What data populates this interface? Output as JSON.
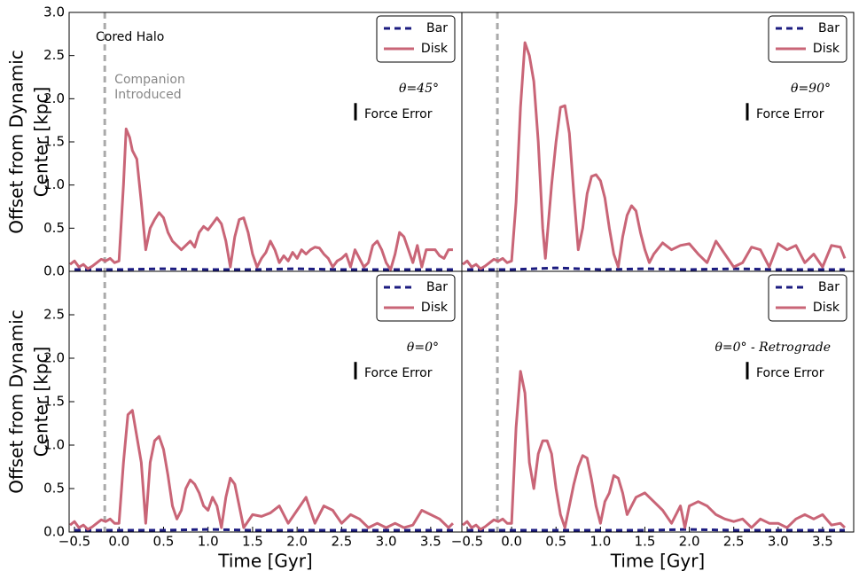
{
  "chart_data": [
    {
      "type": "line",
      "xlim": [
        -0.56,
        3.85
      ],
      "ylim": [
        0,
        3
      ],
      "yticks": [
        {
          "value": 0,
          "label": "0.0"
        },
        {
          "value": 0.5,
          "label": "0.5"
        },
        {
          "value": 1,
          "label": "1.0"
        },
        {
          "value": 1.5,
          "label": "1.5"
        },
        {
          "value": 2,
          "label": "2.0"
        },
        {
          "value": 2.5,
          "label": "2.5"
        },
        {
          "value": 3,
          "label": "3.0"
        }
      ],
      "ylabel": [
        "Offset from Dynamic",
        "Center [kpc]"
      ],
      "annotation": "Cored Halo",
      "vline": -0.16,
      "vline_label": [
        "Companion",
        "Introduced"
      ],
      "label": "θ=45°",
      "force_error": 0.2,
      "force_error_label": "Force Error",
      "legend": "upper right",
      "series": [
        {
          "name": "Bar",
          "color": "#1c1c80",
          "dashed": true,
          "x": [
            -0.5,
            0,
            0.5,
            1,
            1.5,
            2,
            2.5,
            3,
            3.5,
            3.75
          ],
          "values": [
            0.02,
            0.02,
            0.03,
            0.02,
            0.02,
            0.03,
            0.02,
            0.02,
            0.02,
            0.02
          ]
        },
        {
          "name": "Disk",
          "color": "#c96577",
          "x": [
            -0.55,
            -0.5,
            -0.45,
            -0.4,
            -0.35,
            -0.3,
            -0.25,
            -0.2,
            -0.15,
            -0.1,
            -0.05,
            0,
            0.05,
            0.08,
            0.12,
            0.15,
            0.2,
            0.25,
            0.3,
            0.35,
            0.4,
            0.45,
            0.5,
            0.55,
            0.6,
            0.65,
            0.7,
            0.75,
            0.8,
            0.85,
            0.9,
            0.95,
            1,
            1.05,
            1.1,
            1.15,
            1.2,
            1.25,
            1.3,
            1.35,
            1.4,
            1.45,
            1.5,
            1.55,
            1.6,
            1.65,
            1.7,
            1.75,
            1.8,
            1.85,
            1.9,
            1.95,
            2,
            2.05,
            2.1,
            2.15,
            2.2,
            2.25,
            2.3,
            2.35,
            2.4,
            2.45,
            2.5,
            2.55,
            2.6,
            2.65,
            2.7,
            2.75,
            2.8,
            2.85,
            2.9,
            2.95,
            3,
            3.05,
            3.1,
            3.15,
            3.2,
            3.25,
            3.3,
            3.35,
            3.4,
            3.45,
            3.5,
            3.55,
            3.6,
            3.65,
            3.7,
            3.75
          ],
          "values": [
            0.08,
            0.12,
            0.05,
            0.08,
            0.03,
            0.06,
            0.1,
            0.14,
            0.12,
            0.15,
            0.1,
            0.12,
            1.0,
            1.65,
            1.55,
            1.4,
            1.3,
            0.8,
            0.25,
            0.5,
            0.6,
            0.68,
            0.62,
            0.45,
            0.35,
            0.3,
            0.25,
            0.3,
            0.35,
            0.28,
            0.45,
            0.52,
            0.48,
            0.55,
            0.62,
            0.55,
            0.35,
            0.05,
            0.4,
            0.6,
            0.62,
            0.45,
            0.2,
            0.05,
            0.15,
            0.22,
            0.35,
            0.25,
            0.1,
            0.18,
            0.12,
            0.22,
            0.15,
            0.25,
            0.2,
            0.25,
            0.28,
            0.27,
            0.2,
            0.15,
            0.05,
            0.12,
            0.15,
            0.2,
            0.05,
            0.25,
            0.15,
            0.05,
            0.1,
            0.3,
            0.35,
            0.25,
            0.1,
            0.02,
            0.2,
            0.45,
            0.4,
            0.25,
            0.1,
            0.3,
            0.05,
            0.25,
            0.25,
            0.25,
            0.18,
            0.15,
            0.25,
            0.25
          ]
        }
      ]
    },
    {
      "type": "line",
      "xlim": [
        -0.56,
        3.85
      ],
      "ylim": [
        0,
        3
      ],
      "vline": -0.16,
      "label": "θ=90°",
      "force_error": 0.2,
      "force_error_label": "Force Error",
      "legend": "upper right",
      "series": [
        {
          "name": "Bar",
          "color": "#1c1c80",
          "dashed": true,
          "x": [
            -0.5,
            0,
            0.5,
            1,
            1.5,
            2,
            2.5,
            3,
            3.5,
            3.75
          ],
          "values": [
            0.02,
            0.02,
            0.04,
            0.02,
            0.03,
            0.02,
            0.03,
            0.02,
            0.02,
            0.02
          ]
        },
        {
          "name": "Disk",
          "color": "#c96577",
          "x": [
            -0.55,
            -0.5,
            -0.45,
            -0.4,
            -0.35,
            -0.3,
            -0.25,
            -0.2,
            -0.15,
            -0.1,
            -0.05,
            0,
            0.05,
            0.1,
            0.15,
            0.2,
            0.25,
            0.3,
            0.35,
            0.38,
            0.45,
            0.5,
            0.55,
            0.6,
            0.65,
            0.7,
            0.75,
            0.8,
            0.85,
            0.9,
            0.95,
            1,
            1.05,
            1.1,
            1.15,
            1.2,
            1.25,
            1.3,
            1.35,
            1.4,
            1.45,
            1.5,
            1.55,
            1.6,
            1.7,
            1.8,
            1.9,
            2,
            2.1,
            2.2,
            2.3,
            2.4,
            2.5,
            2.6,
            2.7,
            2.8,
            2.9,
            3,
            3.1,
            3.2,
            3.3,
            3.4,
            3.5,
            3.6,
            3.7,
            3.75
          ],
          "values": [
            0.08,
            0.12,
            0.05,
            0.08,
            0.03,
            0.06,
            0.1,
            0.14,
            0.12,
            0.15,
            0.1,
            0.12,
            0.8,
            1.9,
            2.65,
            2.5,
            2.2,
            1.5,
            0.5,
            0.15,
            1.0,
            1.5,
            1.9,
            1.92,
            1.6,
            0.9,
            0.25,
            0.5,
            0.9,
            1.1,
            1.12,
            1.05,
            0.85,
            0.5,
            0.2,
            0.05,
            0.4,
            0.65,
            0.76,
            0.7,
            0.45,
            0.25,
            0.1,
            0.2,
            0.33,
            0.25,
            0.3,
            0.32,
            0.2,
            0.1,
            0.35,
            0.2,
            0.05,
            0.1,
            0.28,
            0.25,
            0.05,
            0.32,
            0.25,
            0.3,
            0.1,
            0.2,
            0.05,
            0.3,
            0.28,
            0.15
          ]
        }
      ]
    },
    {
      "type": "line",
      "xlim": [
        -0.56,
        3.85
      ],
      "ylim": [
        0,
        3
      ],
      "yticks": [
        {
          "value": 0,
          "label": "0.0"
        },
        {
          "value": 0.5,
          "label": "0.5"
        },
        {
          "value": 1,
          "label": "1.0"
        },
        {
          "value": 1.5,
          "label": "1.5"
        },
        {
          "value": 2,
          "label": "2.0"
        },
        {
          "value": 2.5,
          "label": "2.5"
        }
      ],
      "xticks": [
        {
          "value": -0.5,
          "label": "−0.5"
        },
        {
          "value": 0,
          "label": "0.0"
        },
        {
          "value": 0.5,
          "label": "0.5"
        },
        {
          "value": 1,
          "label": "1.0"
        },
        {
          "value": 1.5,
          "label": "1.5"
        },
        {
          "value": 2,
          "label": "2.0"
        },
        {
          "value": 2.5,
          "label": "2.5"
        },
        {
          "value": 3,
          "label": "3.0"
        },
        {
          "value": 3.5,
          "label": "3.5"
        }
      ],
      "ylabel": [
        "Offset from Dynamic",
        "Center [kpc]"
      ],
      "xlabel": "Time [Gyr]",
      "vline": -0.16,
      "label": "θ=0°",
      "force_error": 0.2,
      "force_error_label": "Force Error",
      "legend": "upper right",
      "series": [
        {
          "name": "Bar",
          "color": "#1c1c80",
          "dashed": true,
          "x": [
            -0.5,
            0,
            0.5,
            1,
            1.5,
            2,
            2.5,
            3,
            3.5,
            3.75
          ],
          "values": [
            0.02,
            0.02,
            0.02,
            0.03,
            0.02,
            0.02,
            0.02,
            0.02,
            0.02,
            0.02
          ]
        },
        {
          "name": "Disk",
          "color": "#c96577",
          "x": [
            -0.55,
            -0.5,
            -0.45,
            -0.4,
            -0.35,
            -0.3,
            -0.25,
            -0.2,
            -0.15,
            -0.1,
            -0.05,
            0,
            0.05,
            0.1,
            0.15,
            0.2,
            0.25,
            0.3,
            0.35,
            0.4,
            0.45,
            0.5,
            0.55,
            0.6,
            0.65,
            0.7,
            0.75,
            0.8,
            0.85,
            0.9,
            0.95,
            1,
            1.05,
            1.1,
            1.15,
            1.2,
            1.25,
            1.3,
            1.35,
            1.4,
            1.5,
            1.6,
            1.7,
            1.8,
            1.9,
            2,
            2.1,
            2.2,
            2.3,
            2.4,
            2.5,
            2.6,
            2.7,
            2.8,
            2.9,
            3,
            3.1,
            3.2,
            3.3,
            3.4,
            3.5,
            3.6,
            3.7,
            3.75
          ],
          "values": [
            0.08,
            0.12,
            0.05,
            0.08,
            0.03,
            0.06,
            0.1,
            0.14,
            0.12,
            0.15,
            0.1,
            0.1,
            0.8,
            1.35,
            1.4,
            1.1,
            0.8,
            0.1,
            0.8,
            1.05,
            1.1,
            0.95,
            0.65,
            0.3,
            0.15,
            0.25,
            0.5,
            0.6,
            0.55,
            0.45,
            0.3,
            0.25,
            0.4,
            0.3,
            0.05,
            0.4,
            0.62,
            0.55,
            0.3,
            0.05,
            0.2,
            0.18,
            0.22,
            0.3,
            0.1,
            0.25,
            0.4,
            0.1,
            0.3,
            0.25,
            0.1,
            0.2,
            0.15,
            0.05,
            0.1,
            0.05,
            0.1,
            0.05,
            0.08,
            0.25,
            0.2,
            0.15,
            0.05,
            0.1
          ]
        }
      ]
    },
    {
      "type": "line",
      "xlim": [
        -0.56,
        3.85
      ],
      "ylim": [
        0,
        3
      ],
      "xticks": [
        {
          "value": -0.5,
          "label": "−0.5"
        },
        {
          "value": 0,
          "label": "0.0"
        },
        {
          "value": 0.5,
          "label": "0.5"
        },
        {
          "value": 1,
          "label": "1.0"
        },
        {
          "value": 1.5,
          "label": "1.5"
        },
        {
          "value": 2,
          "label": "2.0"
        },
        {
          "value": 2.5,
          "label": "2.5"
        },
        {
          "value": 3,
          "label": "3.0"
        },
        {
          "value": 3.5,
          "label": "3.5"
        }
      ],
      "xlabel": "Time [Gyr]",
      "vline": -0.16,
      "label": "θ=0° - Retrograde",
      "force_error": 0.2,
      "force_error_label": "Force Error",
      "legend": "upper right",
      "series": [
        {
          "name": "Bar",
          "color": "#1c1c80",
          "dashed": true,
          "x": [
            -0.5,
            0,
            0.5,
            1,
            1.5,
            2,
            2.5,
            3,
            3.5,
            3.75
          ],
          "values": [
            0.02,
            0.02,
            0.02,
            0.02,
            0.02,
            0.03,
            0.02,
            0.02,
            0.02,
            0.02
          ]
        },
        {
          "name": "Disk",
          "color": "#c96577",
          "x": [
            -0.55,
            -0.5,
            -0.45,
            -0.4,
            -0.35,
            -0.3,
            -0.25,
            -0.2,
            -0.15,
            -0.1,
            -0.05,
            0,
            0.05,
            0.1,
            0.15,
            0.2,
            0.25,
            0.3,
            0.35,
            0.4,
            0.45,
            0.5,
            0.55,
            0.6,
            0.65,
            0.7,
            0.75,
            0.8,
            0.85,
            0.9,
            0.95,
            1,
            1.05,
            1.1,
            1.15,
            1.2,
            1.25,
            1.3,
            1.35,
            1.4,
            1.5,
            1.6,
            1.7,
            1.8,
            1.9,
            1.95,
            2,
            2.1,
            2.2,
            2.3,
            2.4,
            2.5,
            2.6,
            2.7,
            2.8,
            2.9,
            3,
            3.1,
            3.2,
            3.3,
            3.4,
            3.5,
            3.6,
            3.7,
            3.75
          ],
          "values": [
            0.08,
            0.12,
            0.05,
            0.08,
            0.03,
            0.06,
            0.1,
            0.14,
            0.12,
            0.15,
            0.1,
            0.1,
            1.2,
            1.85,
            1.6,
            0.8,
            0.5,
            0.9,
            1.05,
            1.05,
            0.9,
            0.5,
            0.2,
            0.05,
            0.3,
            0.55,
            0.75,
            0.88,
            0.85,
            0.6,
            0.3,
            0.1,
            0.35,
            0.45,
            0.65,
            0.62,
            0.45,
            0.2,
            0.3,
            0.4,
            0.45,
            0.35,
            0.25,
            0.1,
            0.3,
            0.05,
            0.3,
            0.35,
            0.3,
            0.2,
            0.15,
            0.12,
            0.15,
            0.05,
            0.15,
            0.1,
            0.1,
            0.05,
            0.15,
            0.2,
            0.15,
            0.2,
            0.08,
            0.1,
            0.05
          ]
        }
      ]
    }
  ]
}
